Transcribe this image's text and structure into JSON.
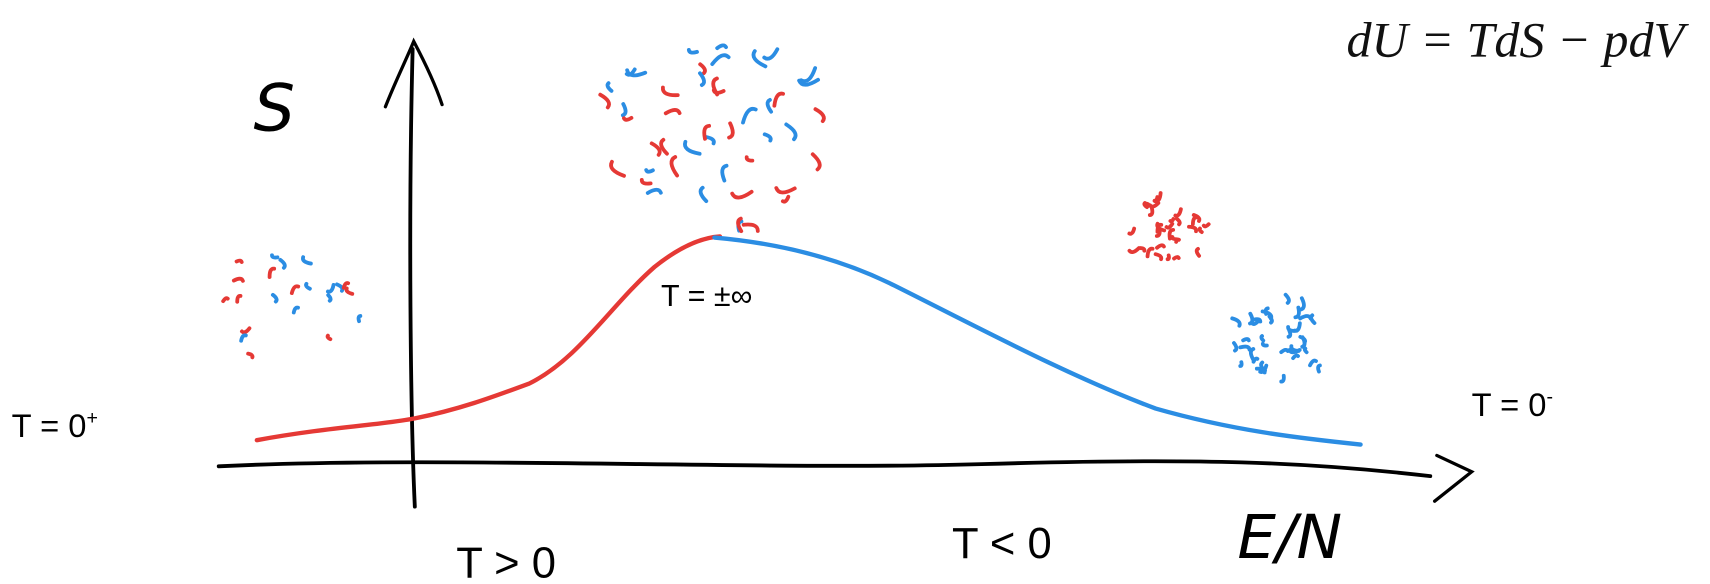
{
  "equation": "dU = TdS − pdV",
  "axes": {
    "y_label": "S",
    "x_label": "E/N"
  },
  "annotations": {
    "zero_plus": {
      "text": "T = 0",
      "sup": "+"
    },
    "zero_minus": {
      "text": "T = 0",
      "sup": "-"
    },
    "infinity": "T = ±∞",
    "positive": "T > 0",
    "negative": "T < 0"
  }
}
